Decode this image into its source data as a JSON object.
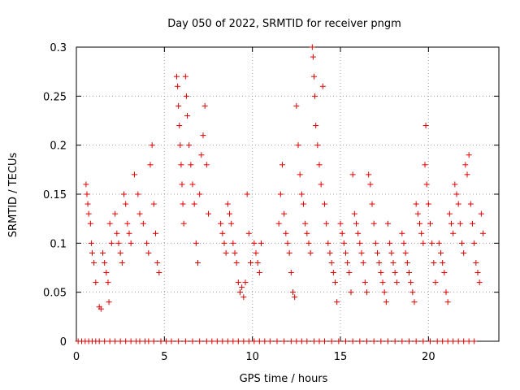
{
  "chart_data": {
    "type": "scatter",
    "title": "Day 050 of 2022, SRMTID for receiver pngm",
    "xlabel": "GPS time / hours",
    "ylabel": "SRMTID / TECUs",
    "xlim": [
      0,
      24
    ],
    "ylim": [
      0,
      0.3
    ],
    "xticks": [
      0,
      5,
      10,
      15,
      20
    ],
    "xtick_labels": [
      "0",
      "5",
      "10",
      "15",
      "20"
    ],
    "yticks": [
      0,
      0.05,
      0.1,
      0.15,
      0.2,
      0.25,
      0.3
    ],
    "ytick_labels": [
      "0",
      "0.05",
      "0.1",
      "0.15",
      "0.2",
      "0.25",
      "0.3"
    ],
    "grid": true,
    "marker": "+",
    "marker_color": "#e00000",
    "zero_markers_note": "dense row of markers along y = 0",
    "series": [
      {
        "name": "SRMTID",
        "points": [
          [
            0.55,
            0.16
          ],
          [
            0.6,
            0.15
          ],
          [
            0.65,
            0.14
          ],
          [
            0.7,
            0.13
          ],
          [
            0.8,
            0.12
          ],
          [
            0.85,
            0.1
          ],
          [
            0.9,
            0.09
          ],
          [
            1.0,
            0.08
          ],
          [
            1.1,
            0.06
          ],
          [
            1.3,
            0.035
          ],
          [
            1.4,
            0.033
          ],
          [
            1.5,
            0.09
          ],
          [
            1.6,
            0.08
          ],
          [
            1.7,
            0.07
          ],
          [
            1.8,
            0.06
          ],
          [
            1.85,
            0.04
          ],
          [
            1.9,
            0.12
          ],
          [
            2.0,
            0.1
          ],
          [
            2.2,
            0.13
          ],
          [
            2.3,
            0.11
          ],
          [
            2.4,
            0.1
          ],
          [
            2.5,
            0.09
          ],
          [
            2.6,
            0.08
          ],
          [
            2.7,
            0.15
          ],
          [
            2.8,
            0.14
          ],
          [
            2.9,
            0.12
          ],
          [
            3.0,
            0.11
          ],
          [
            3.1,
            0.1
          ],
          [
            3.3,
            0.17
          ],
          [
            3.5,
            0.15
          ],
          [
            3.6,
            0.13
          ],
          [
            3.8,
            0.12
          ],
          [
            4.0,
            0.1
          ],
          [
            4.1,
            0.09
          ],
          [
            4.2,
            0.18
          ],
          [
            4.3,
            0.2
          ],
          [
            4.4,
            0.14
          ],
          [
            4.5,
            0.11
          ],
          [
            4.6,
            0.08
          ],
          [
            4.7,
            0.07
          ],
          [
            5.7,
            0.27
          ],
          [
            5.75,
            0.26
          ],
          [
            5.8,
            0.24
          ],
          [
            5.85,
            0.22
          ],
          [
            5.9,
            0.2
          ],
          [
            5.95,
            0.18
          ],
          [
            6.0,
            0.16
          ],
          [
            6.05,
            0.14
          ],
          [
            6.1,
            0.12
          ],
          [
            6.2,
            0.27
          ],
          [
            6.25,
            0.25
          ],
          [
            6.3,
            0.23
          ],
          [
            6.4,
            0.2
          ],
          [
            6.5,
            0.18
          ],
          [
            6.6,
            0.16
          ],
          [
            6.7,
            0.14
          ],
          [
            6.8,
            0.1
          ],
          [
            6.9,
            0.08
          ],
          [
            7.0,
            0.15
          ],
          [
            7.1,
            0.19
          ],
          [
            7.2,
            0.21
          ],
          [
            7.3,
            0.24
          ],
          [
            7.4,
            0.18
          ],
          [
            7.5,
            0.13
          ],
          [
            8.2,
            0.12
          ],
          [
            8.3,
            0.11
          ],
          [
            8.4,
            0.1
          ],
          [
            8.5,
            0.09
          ],
          [
            8.6,
            0.14
          ],
          [
            8.7,
            0.13
          ],
          [
            8.8,
            0.12
          ],
          [
            8.9,
            0.1
          ],
          [
            9.0,
            0.09
          ],
          [
            9.1,
            0.08
          ],
          [
            9.2,
            0.06
          ],
          [
            9.3,
            0.05
          ],
          [
            9.4,
            0.055
          ],
          [
            9.5,
            0.045
          ],
          [
            9.6,
            0.06
          ],
          [
            9.7,
            0.15
          ],
          [
            9.8,
            0.11
          ],
          [
            9.9,
            0.08
          ],
          [
            10.1,
            0.1
          ],
          [
            10.2,
            0.09
          ],
          [
            10.3,
            0.08
          ],
          [
            10.4,
            0.07
          ],
          [
            10.5,
            0.1
          ],
          [
            11.5,
            0.12
          ],
          [
            11.6,
            0.15
          ],
          [
            11.7,
            0.18
          ],
          [
            11.8,
            0.13
          ],
          [
            11.9,
            0.11
          ],
          [
            12.0,
            0.1
          ],
          [
            12.1,
            0.09
          ],
          [
            12.2,
            0.07
          ],
          [
            12.3,
            0.05
          ],
          [
            12.4,
            0.045
          ],
          [
            12.5,
            0.24
          ],
          [
            12.6,
            0.2
          ],
          [
            12.7,
            0.17
          ],
          [
            12.8,
            0.15
          ],
          [
            12.9,
            0.14
          ],
          [
            13.0,
            0.12
          ],
          [
            13.1,
            0.11
          ],
          [
            13.2,
            0.1
          ],
          [
            13.3,
            0.09
          ],
          [
            13.4,
            0.3
          ],
          [
            13.45,
            0.29
          ],
          [
            13.5,
            0.27
          ],
          [
            13.55,
            0.25
          ],
          [
            13.6,
            0.22
          ],
          [
            13.7,
            0.2
          ],
          [
            13.8,
            0.18
          ],
          [
            13.9,
            0.16
          ],
          [
            14.0,
            0.26
          ],
          [
            14.1,
            0.14
          ],
          [
            14.2,
            0.12
          ],
          [
            14.3,
            0.1
          ],
          [
            14.4,
            0.09
          ],
          [
            14.5,
            0.08
          ],
          [
            14.6,
            0.07
          ],
          [
            14.7,
            0.06
          ],
          [
            14.8,
            0.04
          ],
          [
            15.0,
            0.12
          ],
          [
            15.1,
            0.11
          ],
          [
            15.2,
            0.1
          ],
          [
            15.3,
            0.09
          ],
          [
            15.4,
            0.08
          ],
          [
            15.5,
            0.07
          ],
          [
            15.6,
            0.05
          ],
          [
            15.7,
            0.17
          ],
          [
            15.8,
            0.13
          ],
          [
            15.9,
            0.12
          ],
          [
            16.0,
            0.11
          ],
          [
            16.1,
            0.1
          ],
          [
            16.2,
            0.09
          ],
          [
            16.3,
            0.08
          ],
          [
            16.4,
            0.06
          ],
          [
            16.5,
            0.05
          ],
          [
            16.6,
            0.17
          ],
          [
            16.7,
            0.16
          ],
          [
            16.8,
            0.14
          ],
          [
            16.9,
            0.12
          ],
          [
            17.0,
            0.1
          ],
          [
            17.1,
            0.09
          ],
          [
            17.2,
            0.08
          ],
          [
            17.3,
            0.07
          ],
          [
            17.4,
            0.06
          ],
          [
            17.5,
            0.05
          ],
          [
            17.6,
            0.04
          ],
          [
            17.7,
            0.12
          ],
          [
            17.8,
            0.1
          ],
          [
            17.9,
            0.09
          ],
          [
            18.0,
            0.08
          ],
          [
            18.1,
            0.07
          ],
          [
            18.2,
            0.06
          ],
          [
            18.5,
            0.11
          ],
          [
            18.6,
            0.1
          ],
          [
            18.7,
            0.09
          ],
          [
            18.8,
            0.08
          ],
          [
            18.9,
            0.07
          ],
          [
            19.0,
            0.06
          ],
          [
            19.1,
            0.05
          ],
          [
            19.2,
            0.04
          ],
          [
            19.3,
            0.14
          ],
          [
            19.4,
            0.13
          ],
          [
            19.5,
            0.12
          ],
          [
            19.6,
            0.11
          ],
          [
            19.7,
            0.1
          ],
          [
            19.8,
            0.18
          ],
          [
            19.85,
            0.22
          ],
          [
            19.9,
            0.16
          ],
          [
            20.0,
            0.14
          ],
          [
            20.1,
            0.12
          ],
          [
            20.2,
            0.1
          ],
          [
            20.3,
            0.08
          ],
          [
            20.4,
            0.06
          ],
          [
            20.6,
            0.1
          ],
          [
            20.7,
            0.09
          ],
          [
            20.8,
            0.08
          ],
          [
            20.9,
            0.07
          ],
          [
            21.0,
            0.05
          ],
          [
            21.1,
            0.04
          ],
          [
            21.2,
            0.13
          ],
          [
            21.3,
            0.12
          ],
          [
            21.4,
            0.11
          ],
          [
            21.5,
            0.16
          ],
          [
            21.6,
            0.15
          ],
          [
            21.7,
            0.14
          ],
          [
            21.8,
            0.12
          ],
          [
            21.9,
            0.1
          ],
          [
            22.0,
            0.09
          ],
          [
            22.1,
            0.18
          ],
          [
            22.2,
            0.17
          ],
          [
            22.3,
            0.19
          ],
          [
            22.4,
            0.14
          ],
          [
            22.5,
            0.12
          ],
          [
            22.6,
            0.1
          ],
          [
            22.7,
            0.08
          ],
          [
            22.8,
            0.07
          ],
          [
            22.9,
            0.06
          ],
          [
            23.0,
            0.13
          ],
          [
            23.1,
            0.11
          ]
        ],
        "zero_points_x": [
          0.1,
          0.3,
          0.5,
          0.7,
          0.9,
          1.1,
          1.3,
          1.6,
          1.9,
          2.2,
          2.5,
          2.8,
          3.1,
          3.4,
          3.6,
          3.9,
          4.1,
          4.4,
          4.8,
          5.1,
          5.4,
          5.8,
          6.2,
          6.6,
          7.0,
          7.4,
          7.7,
          8.0,
          8.3,
          8.6,
          8.9,
          9.2,
          9.5,
          9.8,
          10.1,
          10.4,
          10.7,
          11.0,
          11.4,
          11.8,
          12.2,
          12.5,
          12.8,
          13.1,
          13.5,
          13.8,
          14.1,
          14.5,
          14.9,
          15.3,
          15.7,
          16.1,
          16.5,
          16.9,
          17.3,
          17.7,
          18.1,
          18.5,
          18.9,
          19.3,
          19.7,
          20.1,
          20.5,
          20.8,
          21.1,
          21.4,
          21.7,
          22.0,
          22.3,
          22.6
        ]
      }
    ]
  }
}
